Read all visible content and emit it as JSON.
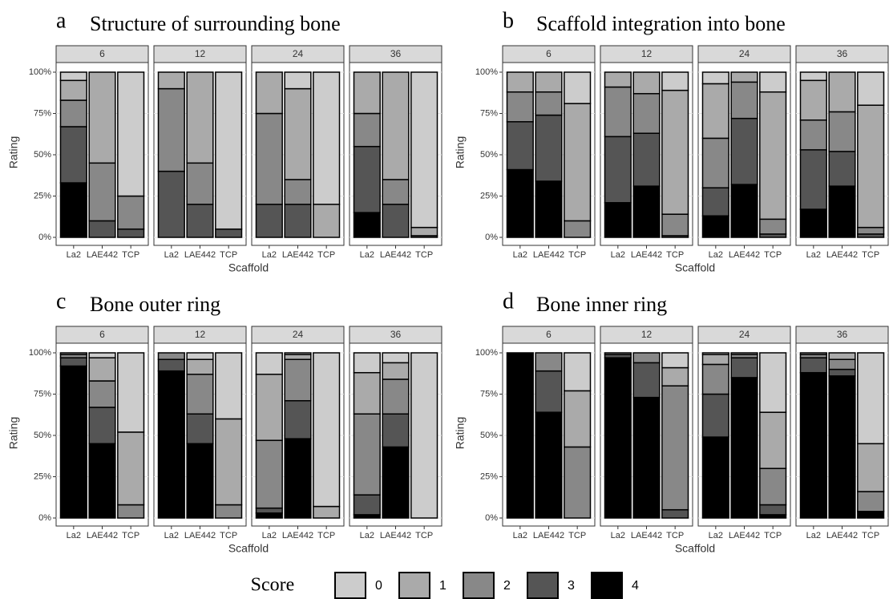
{
  "legend": {
    "title": "Score"
  },
  "chart_data": [
    {
      "type": "bar",
      "label": "a",
      "title": "Structure of surrounding bone",
      "xlabel": "Scaffold",
      "ylabel": "Rating",
      "facets": [
        "6",
        "12",
        "24",
        "36"
      ],
      "categories": [
        "La2",
        "LAE442",
        "TCP"
      ],
      "ylim": [
        0,
        100
      ],
      "yticks": [
        {
          "value": 0,
          "label": "0%"
        },
        {
          "value": 25,
          "label": "25%"
        },
        {
          "value": 50,
          "label": "50%"
        },
        {
          "value": 75,
          "label": "75%"
        },
        {
          "value": 100,
          "label": "100%"
        }
      ],
      "grid": true,
      "series": [
        {
          "name": "0",
          "color": "#cccccc",
          "values": [
            [
              5,
              0,
              75
            ],
            [
              0,
              0,
              95
            ],
            [
              0,
              10,
              80
            ],
            [
              0,
              0,
              94
            ]
          ]
        },
        {
          "name": "1",
          "color": "#aaaaaa",
          "values": [
            [
              12,
              55,
              0
            ],
            [
              10,
              55,
              0
            ],
            [
              25,
              55,
              20
            ],
            [
              25,
              65,
              5
            ]
          ]
        },
        {
          "name": "2",
          "color": "#888888",
          "values": [
            [
              16,
              35,
              20
            ],
            [
              50,
              25,
              0
            ],
            [
              55,
              15,
              0
            ],
            [
              20,
              15,
              0
            ]
          ]
        },
        {
          "name": "3",
          "color": "#555555",
          "values": [
            [
              34,
              10,
              5
            ],
            [
              40,
              20,
              5
            ],
            [
              20,
              20,
              0
            ],
            [
              40,
              20,
              1
            ]
          ]
        },
        {
          "name": "4",
          "color": "#000000",
          "values": [
            [
              33,
              0,
              0
            ],
            [
              0,
              0,
              0
            ],
            [
              0,
              0,
              0
            ],
            [
              15,
              0,
              0
            ]
          ]
        }
      ]
    },
    {
      "type": "bar",
      "label": "b",
      "title": "Scaffold integration into bone",
      "xlabel": "Scaffold",
      "ylabel": "Rating",
      "facets": [
        "6",
        "12",
        "24",
        "36"
      ],
      "categories": [
        "La2",
        "LAE442",
        "TCP"
      ],
      "ylim": [
        0,
        100
      ],
      "yticks": [
        {
          "value": 0,
          "label": "0%"
        },
        {
          "value": 25,
          "label": "25%"
        },
        {
          "value": 50,
          "label": "50%"
        },
        {
          "value": 75,
          "label": "75%"
        },
        {
          "value": 100,
          "label": "100%"
        }
      ],
      "grid": true,
      "series": [
        {
          "name": "0",
          "color": "#cccccc",
          "values": [
            [
              0,
              0,
              19
            ],
            [
              0,
              0,
              11
            ],
            [
              7,
              0,
              12
            ],
            [
              5,
              0,
              20
            ]
          ]
        },
        {
          "name": "1",
          "color": "#aaaaaa",
          "values": [
            [
              12,
              12,
              71
            ],
            [
              9,
              13,
              75
            ],
            [
              33,
              6,
              77
            ],
            [
              24,
              24,
              74
            ]
          ]
        },
        {
          "name": "2",
          "color": "#888888",
          "values": [
            [
              18,
              14,
              10
            ],
            [
              30,
              24,
              13
            ],
            [
              30,
              22,
              9
            ],
            [
              18,
              24,
              4
            ]
          ]
        },
        {
          "name": "3",
          "color": "#555555",
          "values": [
            [
              29,
              40,
              0
            ],
            [
              40,
              32,
              1
            ],
            [
              17,
              40,
              2
            ],
            [
              36,
              21,
              2
            ]
          ]
        },
        {
          "name": "4",
          "color": "#000000",
          "values": [
            [
              41,
              34,
              0
            ],
            [
              21,
              31,
              0
            ],
            [
              13,
              32,
              0
            ],
            [
              17,
              31,
              0
            ]
          ]
        }
      ]
    },
    {
      "type": "bar",
      "label": "c",
      "title": "Bone outer ring",
      "xlabel": "Scaffold",
      "ylabel": "Rating",
      "facets": [
        "6",
        "12",
        "24",
        "36"
      ],
      "categories": [
        "La2",
        "LAE442",
        "TCP"
      ],
      "ylim": [
        0,
        100
      ],
      "yticks": [
        {
          "value": 0,
          "label": "0%"
        },
        {
          "value": 25,
          "label": "25%"
        },
        {
          "value": 50,
          "label": "50%"
        },
        {
          "value": 75,
          "label": "75%"
        },
        {
          "value": 100,
          "label": "100%"
        }
      ],
      "grid": true,
      "series": [
        {
          "name": "0",
          "color": "#cccccc",
          "values": [
            [
              0,
              3,
              48
            ],
            [
              0,
              4,
              40
            ],
            [
              13,
              1,
              93
            ],
            [
              12,
              6,
              100
            ]
          ]
        },
        {
          "name": "1",
          "color": "#aaaaaa",
          "values": [
            [
              1,
              14,
              44
            ],
            [
              0,
              9,
              52
            ],
            [
              40,
              3,
              7
            ],
            [
              25,
              10,
              0
            ]
          ]
        },
        {
          "name": "2",
          "color": "#888888",
          "values": [
            [
              2,
              16,
              8
            ],
            [
              4,
              24,
              8
            ],
            [
              41,
              25,
              0
            ],
            [
              49,
              21,
              0
            ]
          ]
        },
        {
          "name": "3",
          "color": "#555555",
          "values": [
            [
              5,
              22,
              0
            ],
            [
              7,
              18,
              0
            ],
            [
              3,
              23,
              0
            ],
            [
              12,
              20,
              0
            ]
          ]
        },
        {
          "name": "4",
          "color": "#000000",
          "values": [
            [
              92,
              45,
              0
            ],
            [
              89,
              45,
              0
            ],
            [
              3,
              48,
              0
            ],
            [
              2,
              43,
              0
            ]
          ]
        }
      ]
    },
    {
      "type": "bar",
      "label": "d",
      "title": "Bone inner ring",
      "xlabel": "Scaffold",
      "ylabel": "Rating",
      "facets": [
        "6",
        "12",
        "24",
        "36"
      ],
      "categories": [
        "La2",
        "LAE442",
        "TCP"
      ],
      "ylim": [
        0,
        100
      ],
      "yticks": [
        {
          "value": 0,
          "label": "0%"
        },
        {
          "value": 25,
          "label": "25%"
        },
        {
          "value": 50,
          "label": "50%"
        },
        {
          "value": 75,
          "label": "75%"
        },
        {
          "value": 100,
          "label": "100%"
        }
      ],
      "grid": true,
      "series": [
        {
          "name": "0",
          "color": "#cccccc",
          "values": [
            [
              0,
              0,
              23
            ],
            [
              0,
              0,
              9
            ],
            [
              1,
              0,
              36
            ],
            [
              0,
              0,
              55
            ]
          ]
        },
        {
          "name": "1",
          "color": "#aaaaaa",
          "values": [
            [
              0,
              0,
              34
            ],
            [
              0,
              0,
              11
            ],
            [
              6,
              1,
              34
            ],
            [
              1,
              4,
              29
            ]
          ]
        },
        {
          "name": "2",
          "color": "#888888",
          "values": [
            [
              0,
              11,
              43
            ],
            [
              1,
              6,
              75
            ],
            [
              18,
              2,
              22
            ],
            [
              2,
              6,
              12
            ]
          ]
        },
        {
          "name": "3",
          "color": "#555555",
          "values": [
            [
              0,
              25,
              0
            ],
            [
              2,
              21,
              5
            ],
            [
              26,
              12,
              6
            ],
            [
              9,
              4,
              0
            ]
          ]
        },
        {
          "name": "4",
          "color": "#000000",
          "values": [
            [
              100,
              64,
              0
            ],
            [
              97,
              73,
              0
            ],
            [
              49,
              85,
              2
            ],
            [
              88,
              86,
              4
            ]
          ]
        }
      ]
    }
  ]
}
